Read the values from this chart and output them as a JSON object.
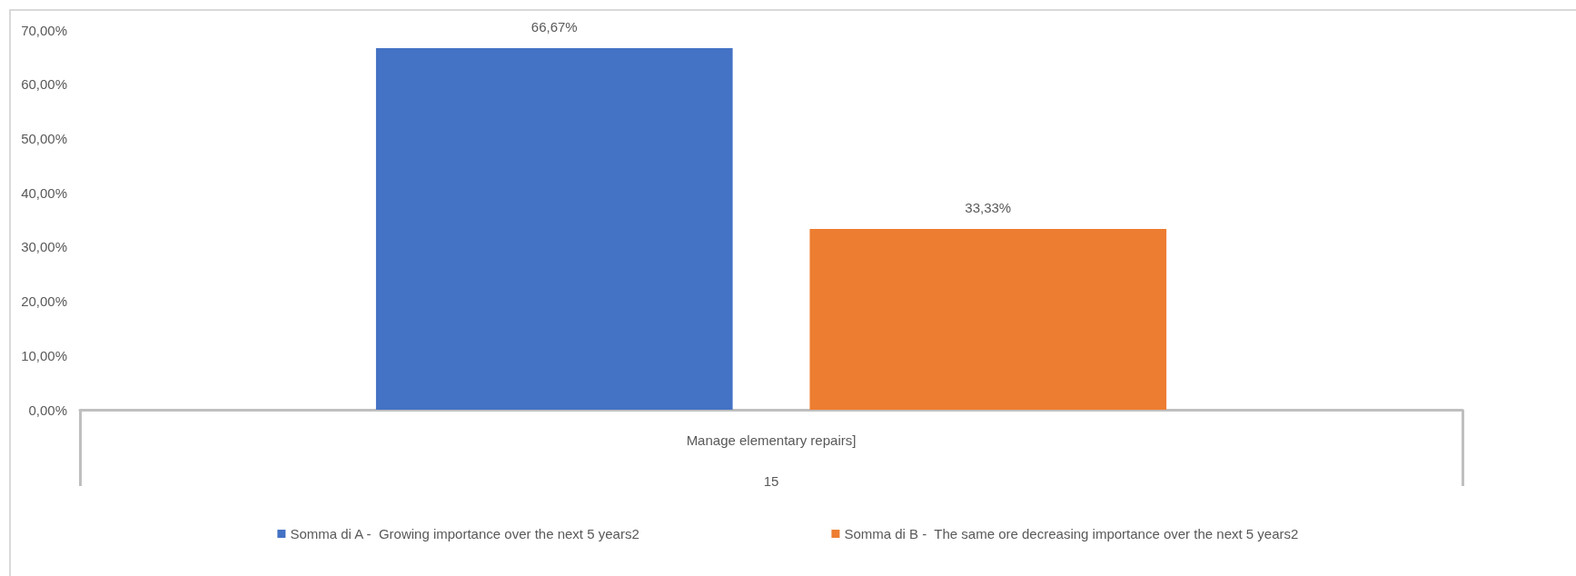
{
  "chart_data": {
    "type": "bar",
    "categories": [
      "Manage elementary repairs]"
    ],
    "xlabel": "15",
    "series": [
      {
        "name": "Somma di A -  Growing importance over the next 5 years2",
        "color": "#4472c4",
        "values": [
          66.67
        ],
        "value_labels": [
          "66,67%"
        ]
      },
      {
        "name": "Somma di B -  The same ore decreasing importance over the next 5 years2",
        "color": "#ed7d31",
        "values": [
          33.33
        ],
        "value_labels": [
          "33,33%"
        ]
      }
    ],
    "ylim": [
      0,
      70
    ],
    "yticks": [
      {
        "value": 0,
        "label": "0,00%"
      },
      {
        "value": 10,
        "label": "10,00%"
      },
      {
        "value": 20,
        "label": "20,00%"
      },
      {
        "value": 30,
        "label": "30,00%"
      },
      {
        "value": 40,
        "label": "40,00%"
      },
      {
        "value": 50,
        "label": "50,00%"
      },
      {
        "value": 60,
        "label": "60,00%"
      },
      {
        "value": 70,
        "label": "70,00%"
      }
    ],
    "grid": false,
    "legend": "bottom"
  }
}
